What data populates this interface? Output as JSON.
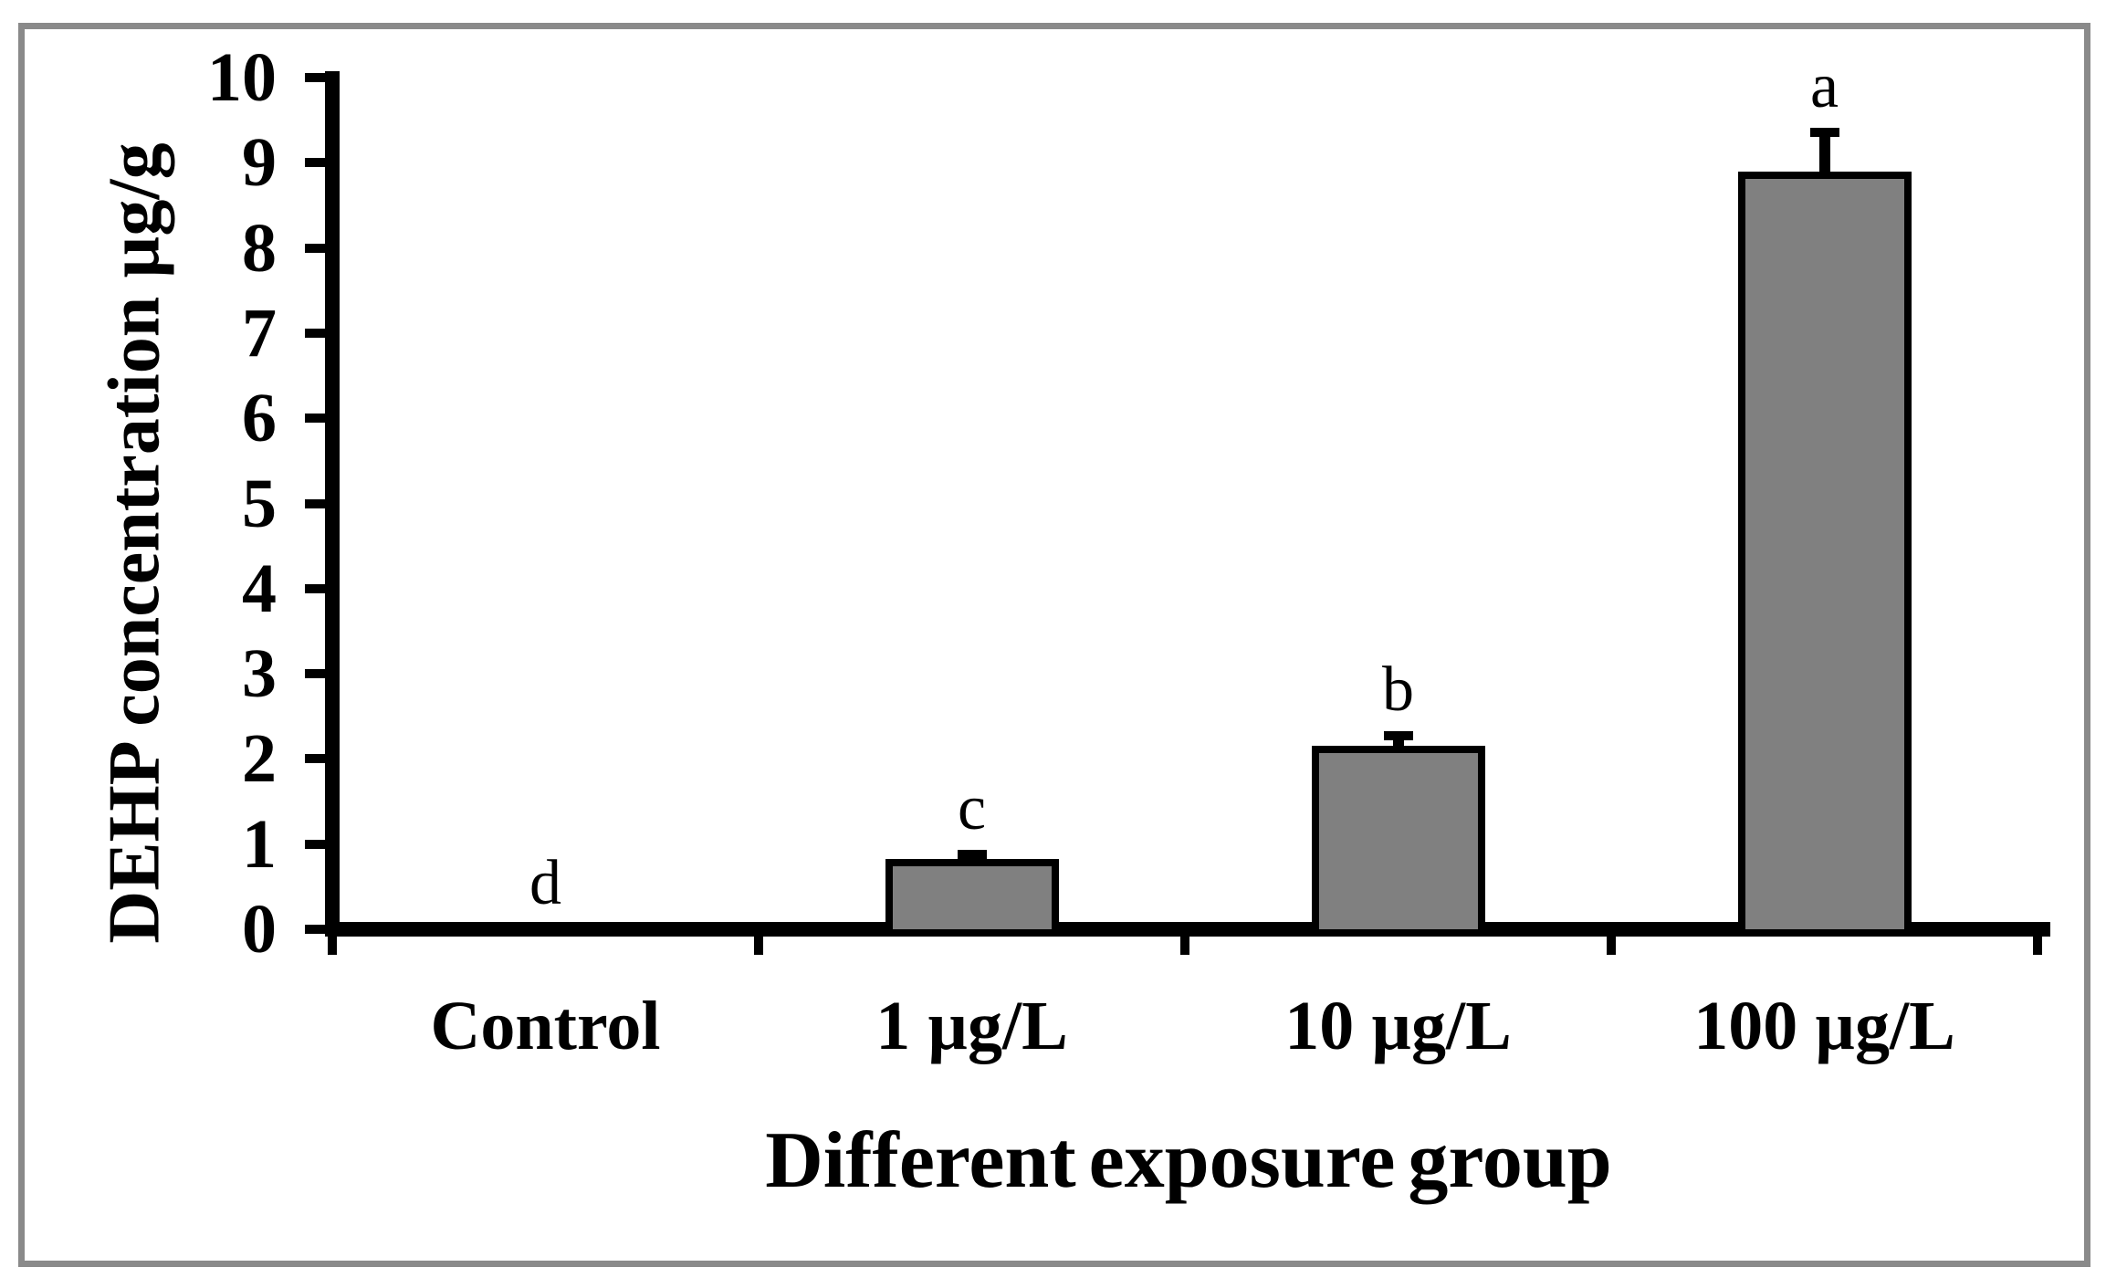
{
  "figure": {
    "background_color": "#ffffff",
    "border_color": "#8a8a8a"
  },
  "chart_data": {
    "type": "bar",
    "title": "",
    "xlabel": "Different exposure group",
    "ylabel": "DEHP concentration µg/g",
    "categories": [
      "Control",
      "1 µg/L",
      "10 µg/L",
      "100 µg/L"
    ],
    "values": [
      0,
      0.82,
      2.15,
      8.9
    ],
    "error_bars": [
      0,
      0.06,
      0.12,
      0.46
    ],
    "significance_letters": [
      "d",
      "c",
      "b",
      "a"
    ],
    "ylim": [
      0,
      10
    ],
    "yticks": [
      0,
      1,
      2,
      3,
      4,
      5,
      6,
      7,
      8,
      9,
      10
    ],
    "grid": false,
    "legend": null,
    "bar_color": "#808080",
    "bar_border_color": "#000000",
    "axis_color": "#000000",
    "text_color": "#000000"
  }
}
